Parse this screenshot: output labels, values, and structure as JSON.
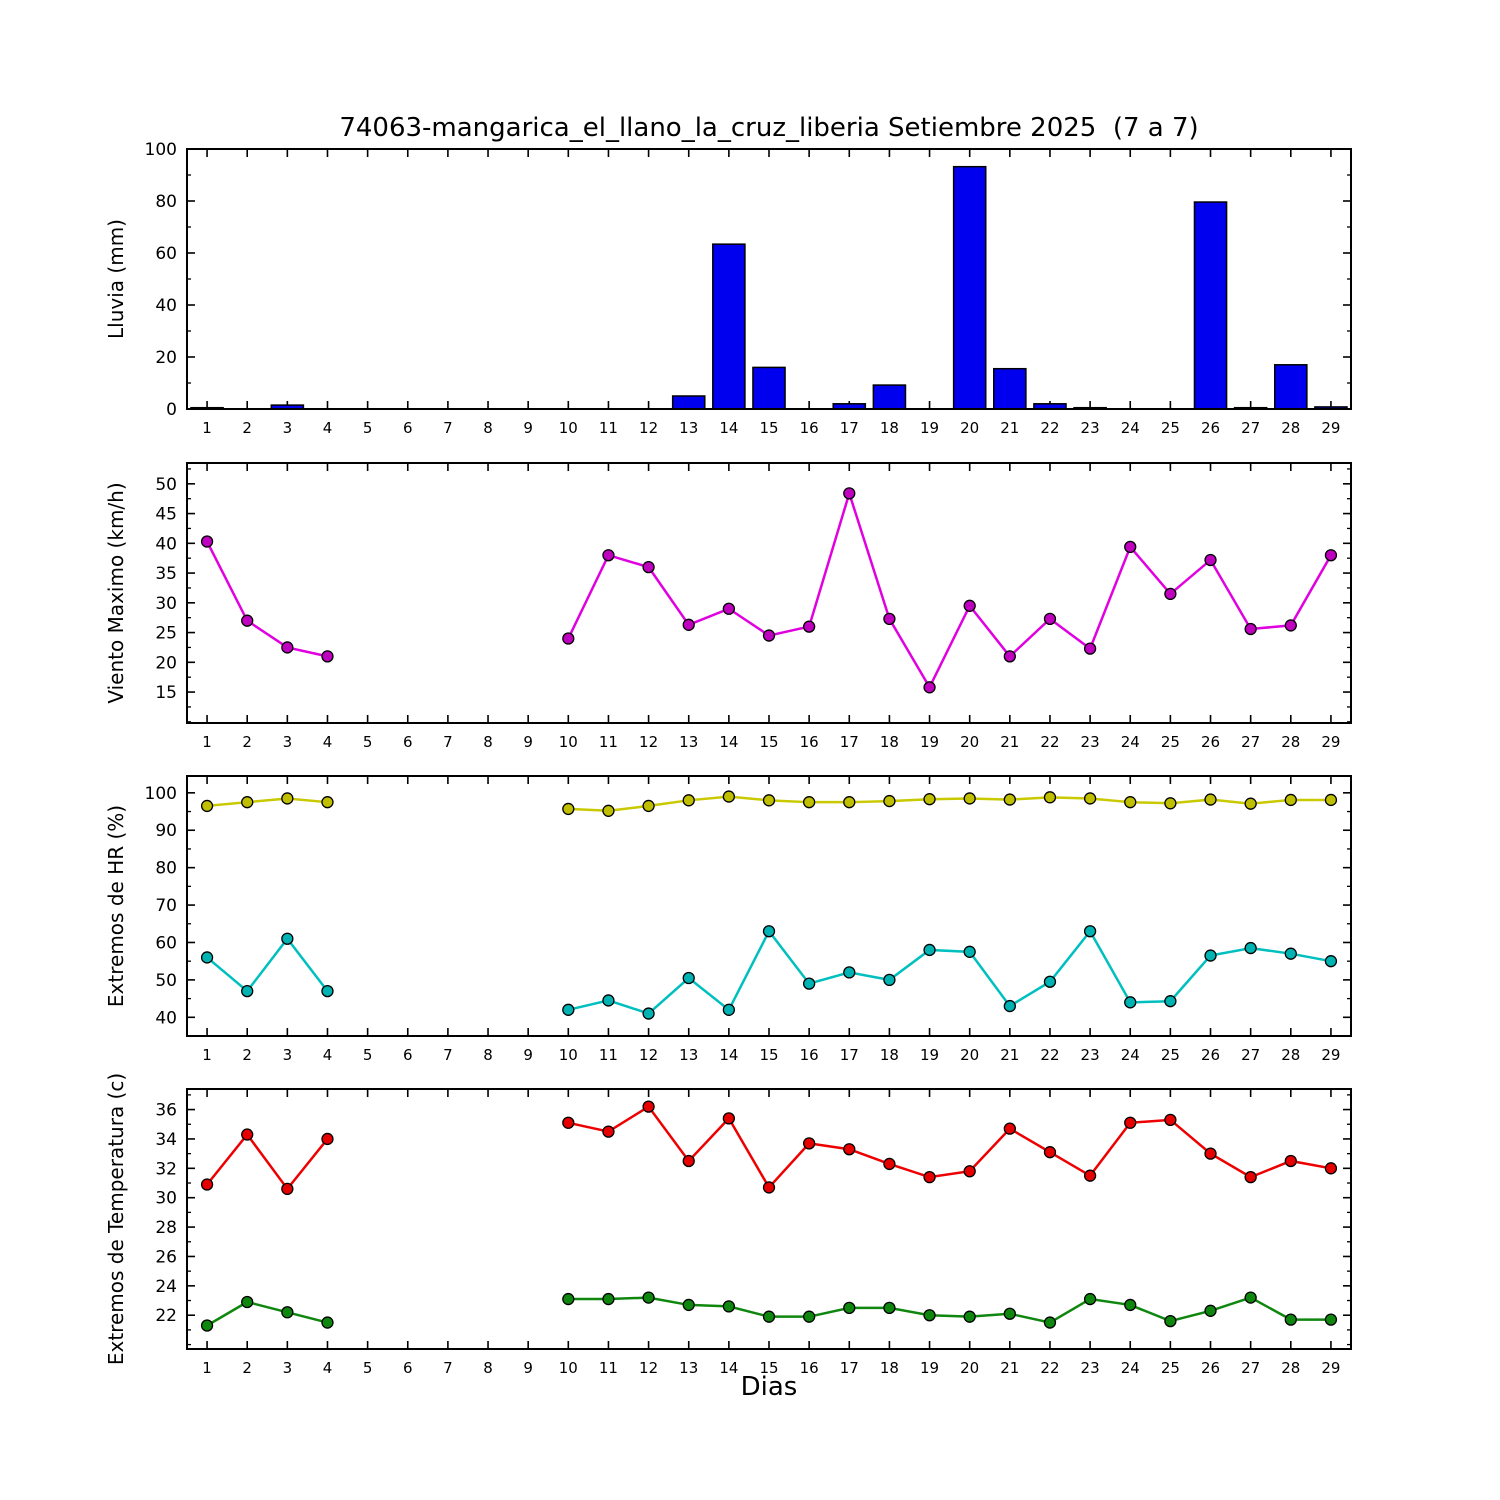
{
  "chart_data": {
    "type": "multi-panel",
    "panel_types": [
      "bar",
      "line",
      "line",
      "line"
    ],
    "title": "74063-mangarica_el_llano_la_cruz_liberia Setiembre 2025  (7 a 7)",
    "xlabel": "Dias",
    "days": [
      1,
      2,
      3,
      4,
      5,
      6,
      7,
      8,
      9,
      10,
      11,
      12,
      13,
      14,
      15,
      16,
      17,
      18,
      19,
      20,
      21,
      22,
      23,
      24,
      25,
      26,
      27,
      28,
      29
    ],
    "subplots": [
      {
        "name": "lluvia",
        "type": "bar",
        "ylabel": "Lluvia (mm)",
        "ylim": [
          0,
          100
        ],
        "yticks": [
          0,
          20,
          40,
          60,
          80,
          100
        ],
        "ytick_minor_step": 10,
        "bar_color": "#0000ee",
        "values": [
          0.5,
          0,
          1.5,
          0,
          0,
          0,
          0,
          0,
          0,
          0,
          0,
          0,
          5,
          63.4,
          16,
          0,
          2,
          9.2,
          0,
          93.2,
          15.5,
          2,
          0.5,
          0,
          0,
          79.6,
          0.5,
          17,
          0.8
        ]
      },
      {
        "name": "viento-maximo",
        "type": "line",
        "ylabel": "Viento Maximo (km/h)",
        "ylim": [
          9.8,
          53.5
        ],
        "yticks": [
          15,
          20,
          25,
          30,
          35,
          40,
          45,
          50
        ],
        "ytick_minor_step": 2.5,
        "series": [
          {
            "name": "viento_maximo_kmh",
            "line_color": "#e000e0",
            "marker_color": "#bf00bf",
            "values": [
              40.3,
              27,
              22.5,
              21,
              null,
              null,
              null,
              null,
              null,
              24,
              38,
              36,
              26.3,
              29,
              24.5,
              26,
              48.4,
              27.3,
              15.8,
              29.5,
              21,
              27.3,
              22.3,
              39.4,
              31.5,
              37.2,
              25.6,
              26.2,
              38
            ]
          }
        ]
      },
      {
        "name": "extremos-hr",
        "type": "line",
        "ylabel": "Extremos de HR (%)",
        "ylim": [
          35,
          104.5
        ],
        "yticks": [
          40,
          50,
          60,
          70,
          80,
          90,
          100
        ],
        "ytick_minor_step": 5,
        "series": [
          {
            "name": "hr_maxima",
            "line_color": "#c9c900",
            "marker_color": "#bfbf00",
            "values": [
              96.5,
              97.5,
              98.5,
              97.5,
              null,
              null,
              null,
              null,
              null,
              95.7,
              95.2,
              96.5,
              98,
              99,
              98,
              97.5,
              97.5,
              97.8,
              98.3,
              98.5,
              98.2,
              98.8,
              98.5,
              97.5,
              97.2,
              98.2,
              97.1,
              98.1,
              98.1
            ]
          },
          {
            "name": "hr_minima",
            "line_color": "#00bfbf",
            "marker_color": "#00b3b3",
            "values": [
              56,
              47,
              61,
              47,
              null,
              null,
              null,
              null,
              null,
              42,
              44.5,
              41,
              50.5,
              42,
              63,
              49,
              52,
              50,
              58,
              57.5,
              43,
              49.5,
              63,
              44,
              44.3,
              56.5,
              58.5,
              57,
              55
            ]
          }
        ]
      },
      {
        "name": "extremos-temperatura",
        "type": "line",
        "ylabel": "Extremos de Temperatura (c)",
        "ylim": [
          19.7,
          37.4
        ],
        "yticks": [
          22,
          24,
          26,
          28,
          30,
          32,
          34,
          36
        ],
        "ytick_minor_step": 1,
        "series": [
          {
            "name": "temperatura_maxima",
            "line_color": "#ee0000",
            "marker_color": "#e60000",
            "values": [
              30.9,
              34.3,
              30.6,
              34.0,
              null,
              null,
              null,
              null,
              null,
              35.1,
              34.5,
              36.2,
              32.5,
              35.4,
              30.7,
              33.7,
              33.3,
              32.3,
              31.4,
              31.8,
              34.7,
              33.1,
              31.5,
              35.1,
              35.3,
              33.0,
              31.4,
              32.5,
              32.0
            ]
          },
          {
            "name": "temperatura_minima",
            "line_color": "#0f870f",
            "marker_color": "#0f870f",
            "values": [
              21.3,
              22.9,
              22.2,
              21.5,
              null,
              null,
              null,
              null,
              null,
              23.1,
              23.1,
              23.2,
              22.7,
              22.6,
              21.9,
              21.9,
              22.5,
              22.5,
              22.0,
              21.9,
              22.1,
              21.5,
              23.1,
              22.7,
              21.6,
              22.3,
              23.2,
              21.7,
              21.7
            ]
          }
        ]
      }
    ]
  }
}
